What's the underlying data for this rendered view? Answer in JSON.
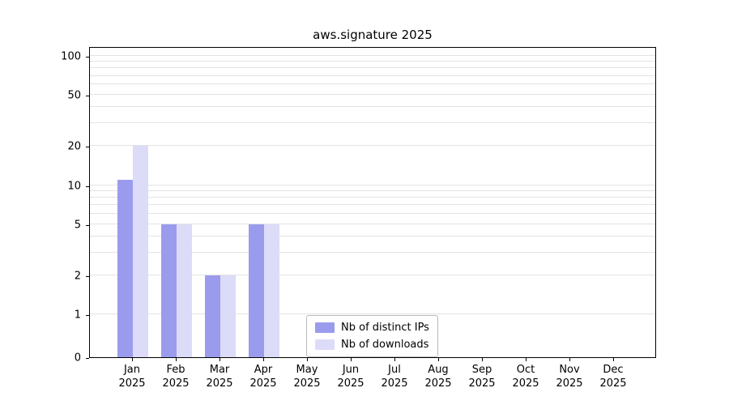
{
  "chart_data": {
    "type": "bar",
    "title": "aws.signature 2025",
    "categories": [
      "Jan",
      "Feb",
      "Mar",
      "Apr",
      "May",
      "Jun",
      "Jul",
      "Aug",
      "Sep",
      "Oct",
      "Nov",
      "Dec"
    ],
    "year_label": "2025",
    "series": [
      {
        "name": "Nb of distinct IPs",
        "color": "#9b9bee",
        "values": [
          11,
          5,
          2,
          5,
          0,
          0,
          0,
          0,
          0,
          0,
          0,
          0
        ]
      },
      {
        "name": "Nb of downloads",
        "color": "#dcdcf8",
        "values": [
          20,
          5,
          2,
          5,
          0,
          0,
          0,
          0,
          0,
          0,
          0,
          0
        ]
      }
    ],
    "yticks": [
      100,
      50,
      20,
      10,
      5,
      2,
      1,
      0
    ],
    "ylim": [
      0,
      100
    ],
    "scale": "symlog",
    "grid": true,
    "grid_values": [
      1,
      2,
      3,
      4,
      5,
      6,
      7,
      8,
      9,
      10,
      20,
      30,
      40,
      50,
      60,
      70,
      80,
      90,
      100
    ],
    "grid_color": "#e3e3e3",
    "axis_color": "#000000",
    "legend_position": "lower center inside"
  }
}
